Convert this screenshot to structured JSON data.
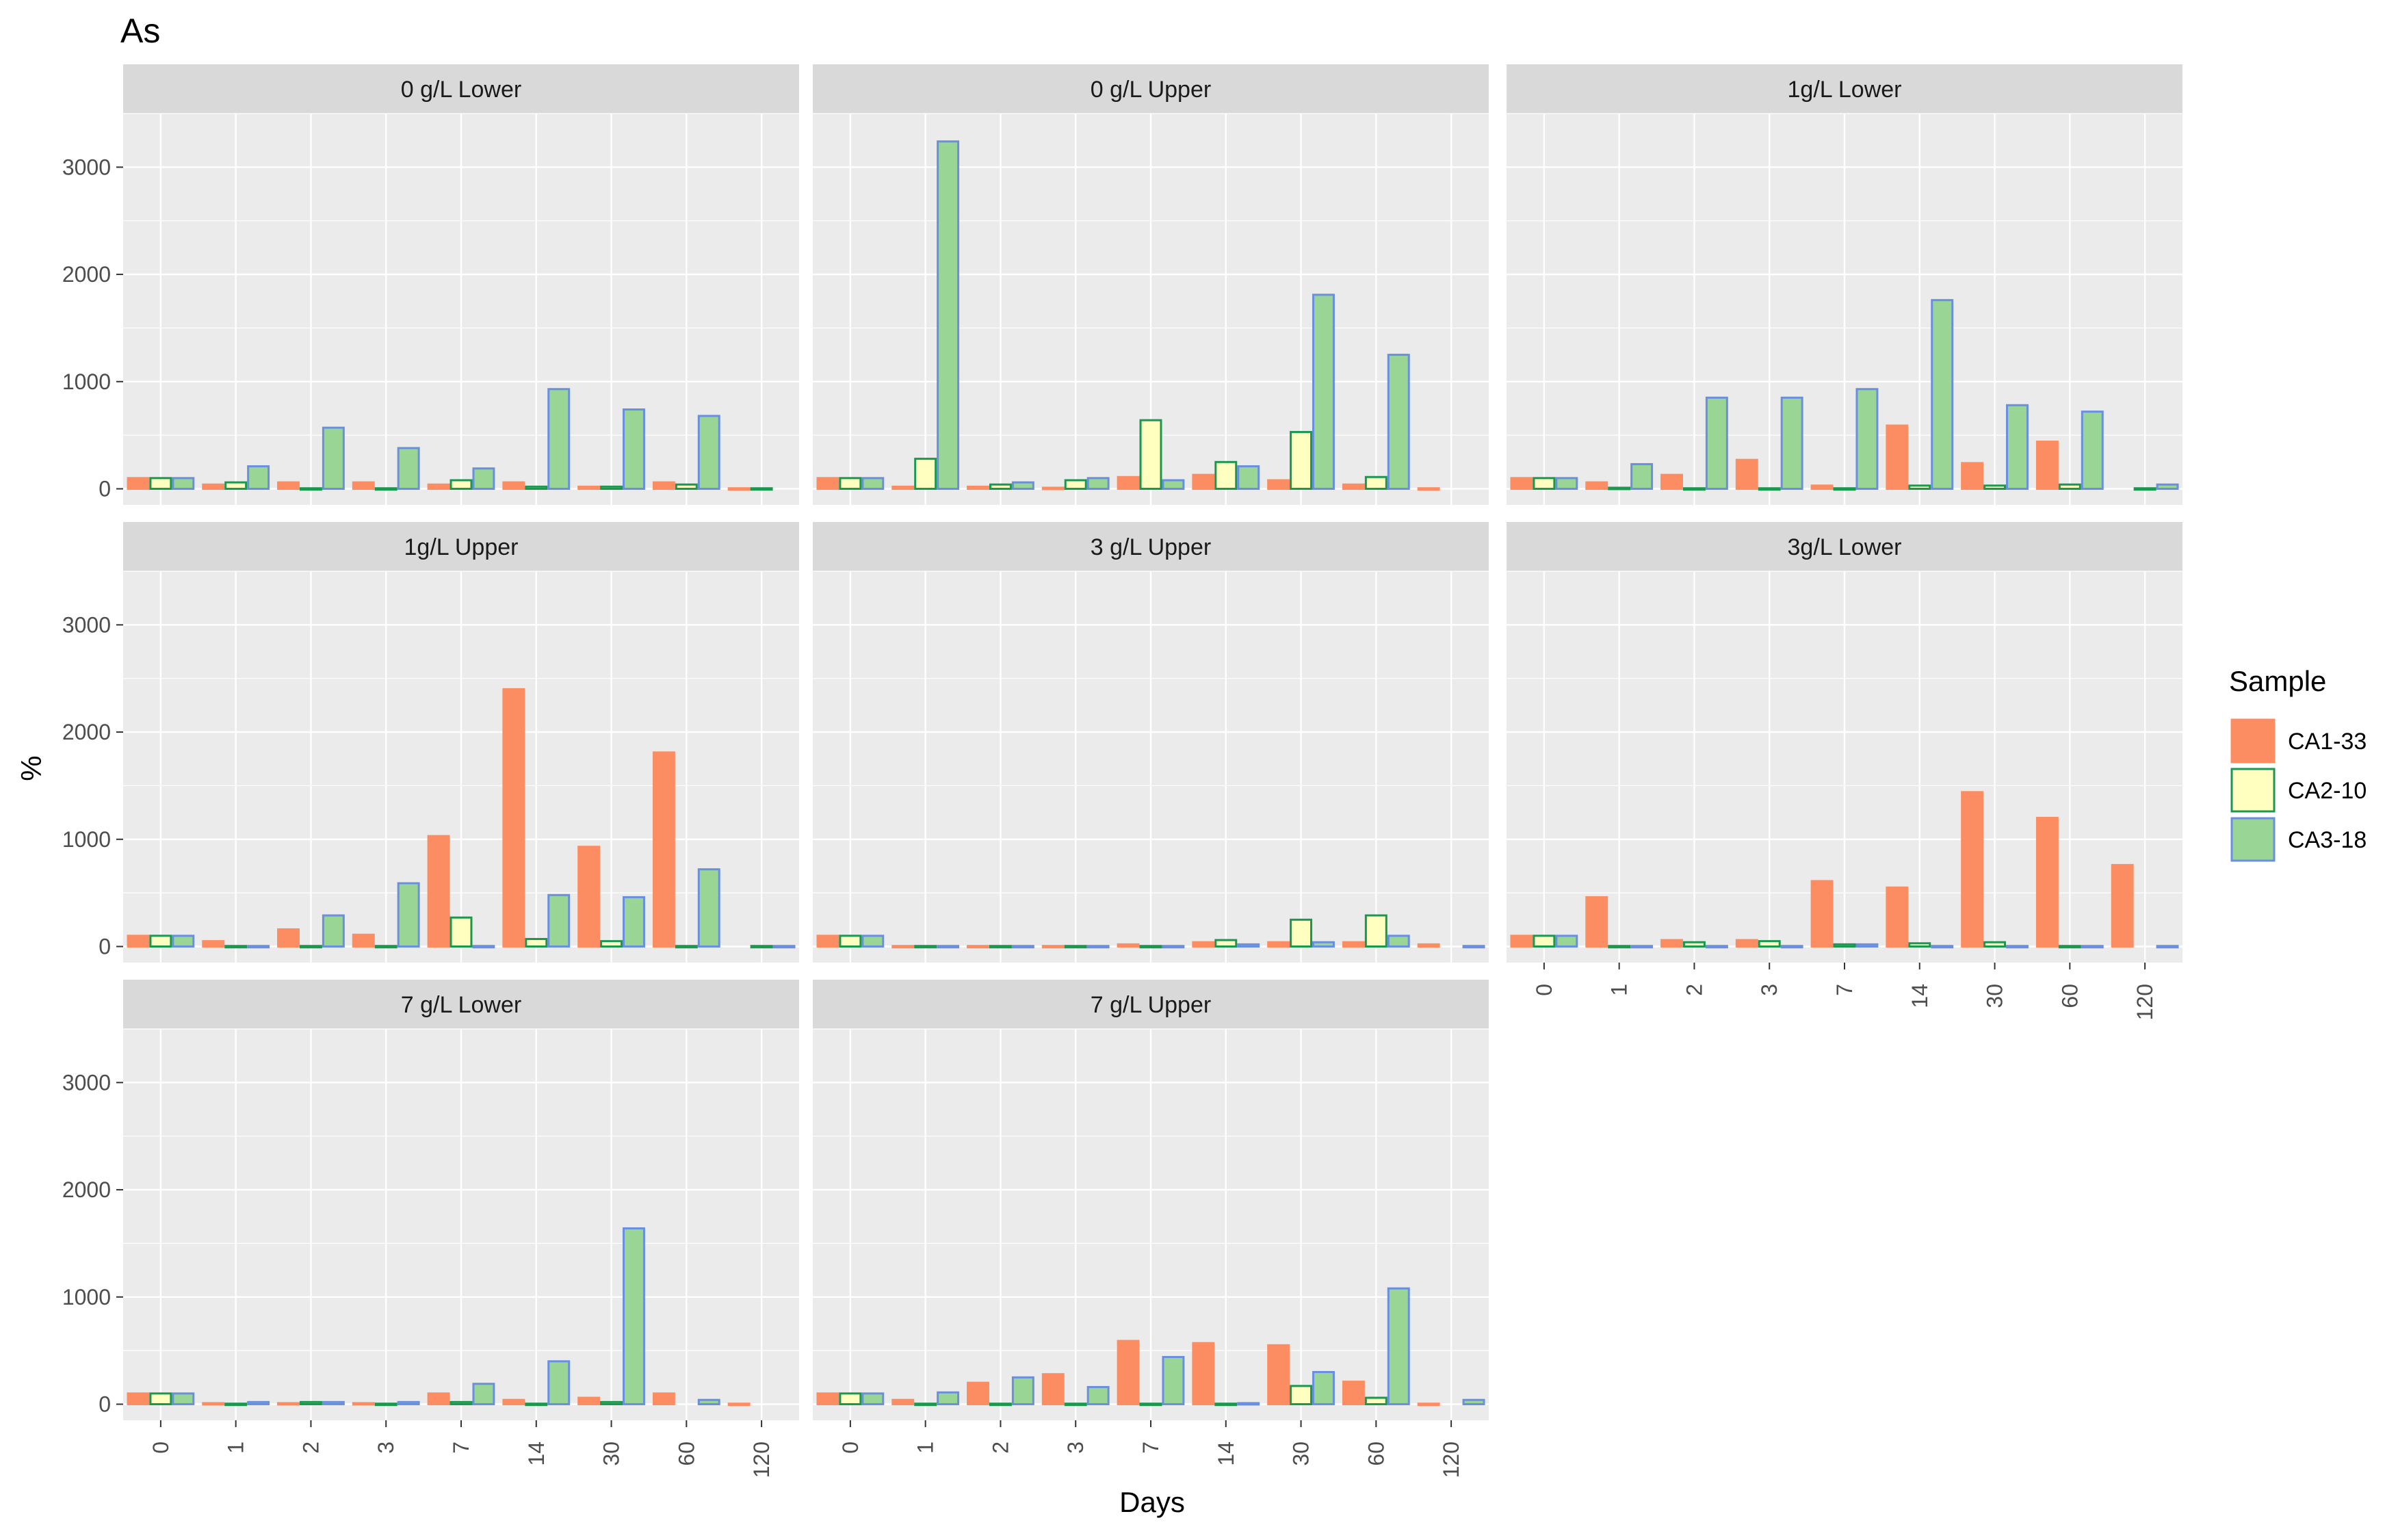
{
  "chart_data": {
    "type": "bar",
    "title": "As",
    "xlabel": "Days",
    "ylabel": "%",
    "ylim": [
      0,
      3500
    ],
    "y_ticks": [
      "0",
      "1000",
      "2000",
      "3000"
    ],
    "categories": [
      "0",
      "1",
      "2",
      "3",
      "7",
      "14",
      "30",
      "60",
      "120"
    ],
    "legend": {
      "title": "Sample",
      "position": "right",
      "entries": [
        "CA1-33",
        "CA2-10",
        "CA3-18"
      ]
    },
    "series_style": [
      {
        "name": "CA1-33",
        "fill": "#fc8d62",
        "stroke": "#fc8d62"
      },
      {
        "name": "CA2-10",
        "fill": "#ffffbf",
        "stroke": "#1a9850"
      },
      {
        "name": "CA3-18",
        "fill": "#99d594",
        "stroke": "#6a8fe0"
      }
    ],
    "panels": [
      {
        "label": "0 g/L Lower",
        "series": [
          {
            "name": "CA1-33",
            "values": [
              100,
              40,
              60,
              60,
              40,
              60,
              20,
              60,
              5
            ]
          },
          {
            "name": "CA2-10",
            "values": [
              100,
              60,
              5,
              5,
              80,
              20,
              20,
              40,
              5
            ]
          },
          {
            "name": "CA3-18",
            "values": [
              100,
              210,
              570,
              380,
              190,
              930,
              740,
              680,
              null
            ]
          }
        ]
      },
      {
        "label": "0 g/L Upper",
        "series": [
          {
            "name": "CA1-33",
            "values": [
              100,
              20,
              20,
              10,
              110,
              130,
              80,
              40,
              5
            ]
          },
          {
            "name": "CA2-10",
            "values": [
              100,
              280,
              40,
              80,
              640,
              250,
              530,
              110,
              null
            ]
          },
          {
            "name": "CA3-18",
            "values": [
              100,
              3240,
              60,
              100,
              80,
              210,
              1810,
              1250,
              null
            ]
          }
        ]
      },
      {
        "label": "1g/L Lower",
        "series": [
          {
            "name": "CA1-33",
            "values": [
              100,
              60,
              130,
              270,
              30,
              590,
              240,
              440,
              null
            ]
          },
          {
            "name": "CA2-10",
            "values": [
              100,
              10,
              5,
              5,
              5,
              30,
              30,
              40,
              5
            ]
          },
          {
            "name": "CA3-18",
            "values": [
              100,
              230,
              850,
              850,
              930,
              1760,
              780,
              720,
              40
            ]
          }
        ]
      },
      {
        "label": "1g/L Upper",
        "series": [
          {
            "name": "CA1-33",
            "values": [
              100,
              50,
              160,
              110,
              1030,
              2400,
              930,
              1810,
              null
            ]
          },
          {
            "name": "CA2-10",
            "values": [
              100,
              5,
              5,
              5,
              270,
              70,
              50,
              5,
              5
            ]
          },
          {
            "name": "CA3-18",
            "values": [
              100,
              5,
              290,
              590,
              5,
              480,
              460,
              720,
              5
            ]
          }
        ]
      },
      {
        "label": "3 g/L Upper",
        "series": [
          {
            "name": "CA1-33",
            "values": [
              100,
              5,
              5,
              5,
              20,
              40,
              40,
              40,
              20
            ]
          },
          {
            "name": "CA2-10",
            "values": [
              100,
              5,
              5,
              5,
              5,
              60,
              250,
              290,
              null
            ]
          },
          {
            "name": "CA3-18",
            "values": [
              100,
              5,
              5,
              5,
              5,
              20,
              40,
              100,
              5
            ]
          }
        ]
      },
      {
        "label": "3g/L Lower",
        "series": [
          {
            "name": "CA1-33",
            "values": [
              100,
              460,
              60,
              60,
              610,
              550,
              1440,
              1200,
              760
            ]
          },
          {
            "name": "CA2-10",
            "values": [
              100,
              5,
              40,
              50,
              20,
              30,
              40,
              5,
              null
            ]
          },
          {
            "name": "CA3-18",
            "values": [
              100,
              5,
              5,
              5,
              20,
              5,
              5,
              5,
              5
            ]
          }
        ]
      },
      {
        "label": "7 g/L Lower",
        "series": [
          {
            "name": "CA1-33",
            "values": [
              100,
              10,
              10,
              10,
              100,
              40,
              60,
              100,
              5
            ]
          },
          {
            "name": "CA2-10",
            "values": [
              100,
              5,
              20,
              5,
              20,
              5,
              20,
              null,
              null
            ]
          },
          {
            "name": "CA3-18",
            "values": [
              100,
              20,
              20,
              20,
              190,
              400,
              1640,
              40,
              null
            ]
          }
        ]
      },
      {
        "label": "7 g/L Upper",
        "series": [
          {
            "name": "CA1-33",
            "values": [
              100,
              40,
              200,
              280,
              590,
              570,
              550,
              210,
              5
            ]
          },
          {
            "name": "CA2-10",
            "values": [
              100,
              5,
              5,
              5,
              5,
              5,
              170,
              60,
              null
            ]
          },
          {
            "name": "CA3-18",
            "values": [
              100,
              110,
              250,
              160,
              440,
              10,
              300,
              1080,
              40
            ]
          }
        ]
      }
    ]
  }
}
